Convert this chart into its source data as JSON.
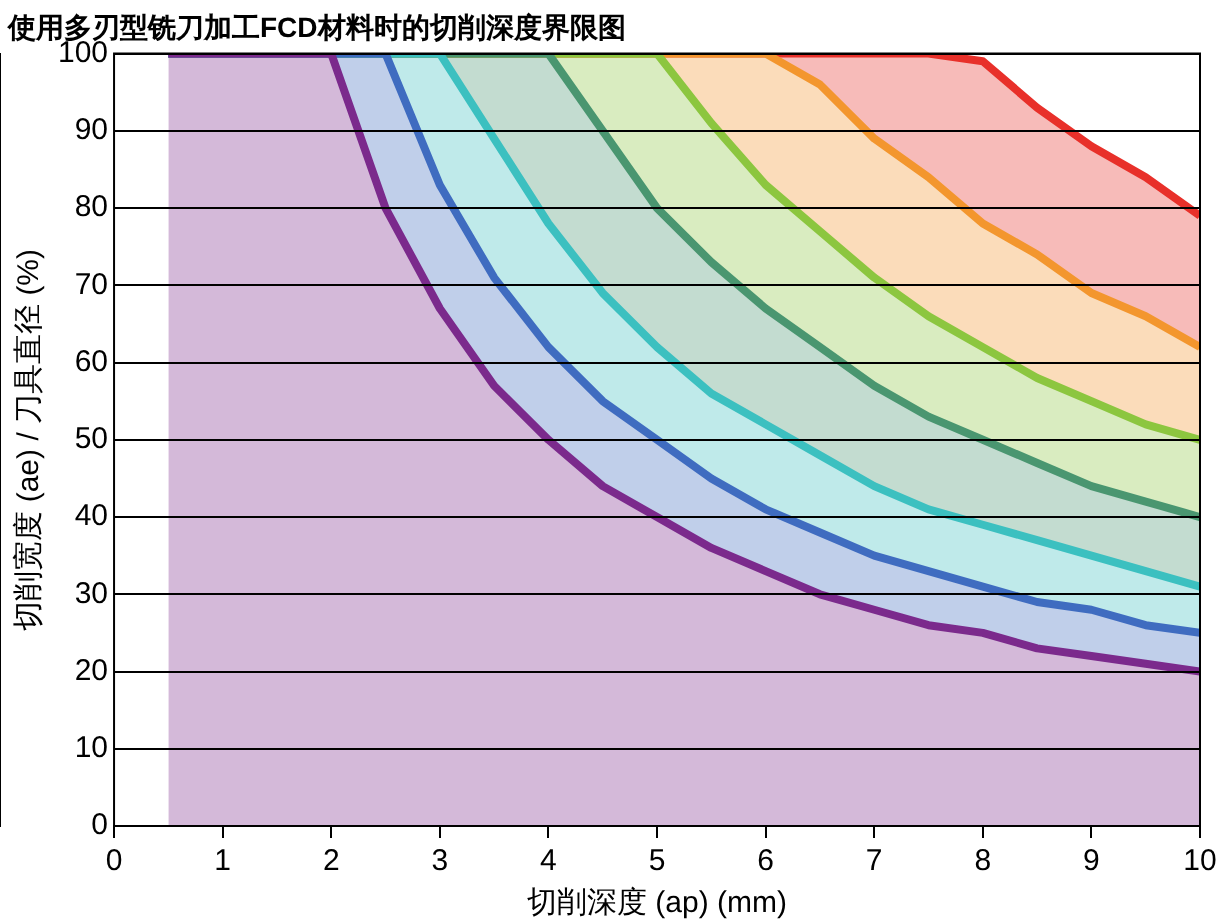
{
  "chart_data": {
    "type": "area",
    "title": "使用多刃型铣刀加工FCD材料时的切削深度界限图",
    "xlabel": "切削深度 (ap) (mm)",
    "ylabel": "切削宽度 (ae) / 刀具直径 (%)",
    "xlim": [
      0,
      10
    ],
    "xticks": [
      0,
      1,
      2,
      3,
      4,
      5,
      6,
      7,
      8,
      9,
      10
    ],
    "ylim": [
      0,
      100
    ],
    "yticks": [
      0,
      10,
      20,
      30,
      40,
      50,
      60,
      70,
      80,
      90,
      100
    ],
    "grid": "y",
    "legend": false,
    "marker": "none",
    "x": [
      0.5,
      2,
      2.5,
      3,
      3.5,
      4,
      4.5,
      5,
      5.5,
      6,
      6.5,
      7,
      7.5,
      8,
      8.5,
      9,
      9.5,
      10
    ],
    "series": [
      {
        "color": "#7b2a8c",
        "values": [
          100,
          100,
          80,
          67,
          57,
          50,
          44,
          40,
          36,
          33,
          30,
          28,
          26,
          25,
          23,
          22,
          21,
          20
        ]
      },
      {
        "color": "#3f6cc0",
        "values": [
          100,
          100,
          100,
          83,
          71,
          62,
          55,
          50,
          45,
          41,
          38,
          35,
          33,
          31,
          29,
          28,
          26,
          25
        ]
      },
      {
        "color": "#3cc0c0",
        "values": [
          100,
          100,
          100,
          100,
          89,
          78,
          69,
          62,
          56,
          52,
          48,
          44,
          41,
          39,
          37,
          35,
          33,
          31
        ]
      },
      {
        "color": "#4a9670",
        "values": [
          100,
          100,
          100,
          100,
          100,
          100,
          90,
          80,
          73,
          67,
          62,
          57,
          53,
          50,
          47,
          44,
          42,
          40
        ]
      },
      {
        "color": "#8cc63f",
        "values": [
          100,
          100,
          100,
          100,
          100,
          100,
          100,
          100,
          91,
          83,
          77,
          71,
          66,
          62,
          58,
          55,
          52,
          50
        ]
      },
      {
        "color": "#f3962e",
        "values": [
          100,
          100,
          100,
          100,
          100,
          100,
          100,
          100,
          100,
          100,
          96,
          89,
          84,
          78,
          74,
          69,
          66,
          62
        ]
      },
      {
        "color": "#e8302a",
        "values": [
          100,
          100,
          100,
          100,
          100,
          100,
          100,
          100,
          100,
          100,
          100,
          100,
          100,
          99,
          93,
          88,
          84,
          79
        ]
      }
    ]
  }
}
